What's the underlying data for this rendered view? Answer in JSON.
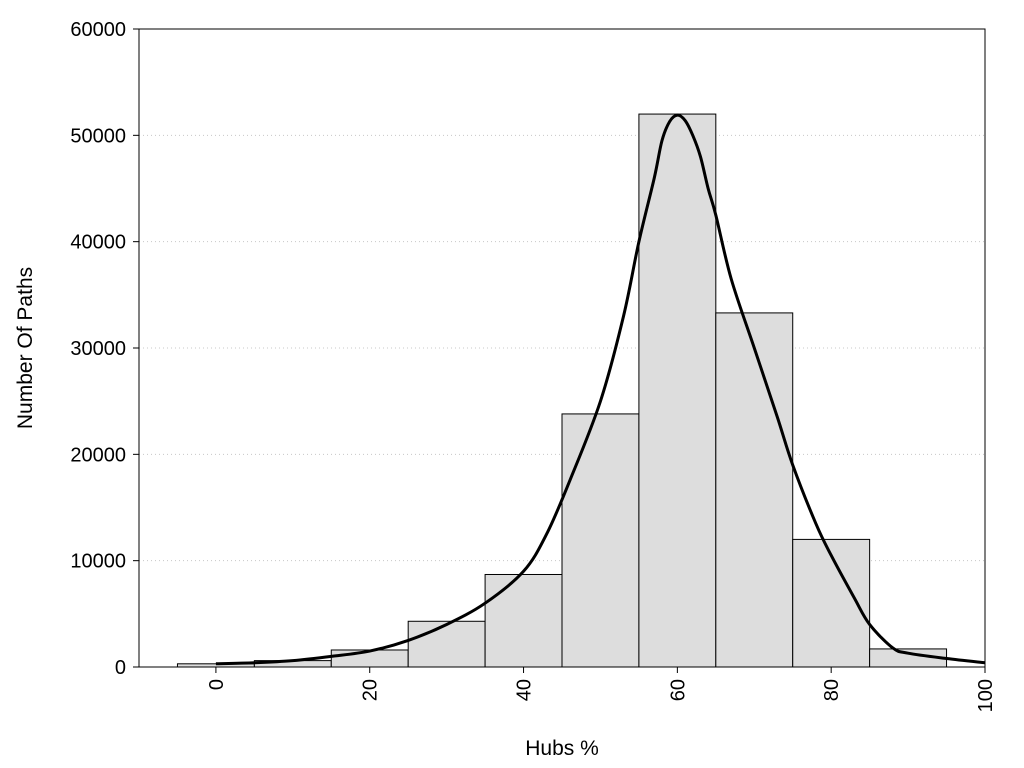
{
  "chart_data": {
    "type": "bar",
    "title": "",
    "xlabel": "Hubs %",
    "ylabel": "Number Of Paths",
    "xlim": [
      -10,
      100
    ],
    "ylim": [
      0,
      60000
    ],
    "x_ticks": [
      0,
      20,
      40,
      60,
      80,
      100
    ],
    "y_ticks": [
      0,
      10000,
      20000,
      30000,
      40000,
      50000,
      60000
    ],
    "grid": "horizontal-dotted",
    "bin_width": 10,
    "bars": {
      "x": [
        0,
        10,
        20,
        30,
        40,
        50,
        60,
        70,
        80,
        90
      ],
      "values": [
        300,
        600,
        1600,
        4300,
        8700,
        23800,
        52000,
        33300,
        12000,
        1700
      ],
      "color": "#dddddd"
    },
    "density_curve": {
      "x": [
        0,
        5,
        10,
        15,
        20,
        25,
        30,
        35,
        40,
        43,
        46,
        50,
        53,
        55,
        57,
        58,
        59,
        60,
        61,
        62,
        63,
        64,
        65,
        67,
        70,
        73,
        75,
        78,
        80,
        83,
        85,
        88,
        90,
        95,
        100
      ],
      "y": [
        300,
        400,
        600,
        1000,
        1500,
        2500,
        4000,
        6000,
        9000,
        12500,
        17500,
        25000,
        33000,
        40000,
        46000,
        49500,
        51300,
        51900,
        51400,
        50000,
        48000,
        45000,
        42500,
        36500,
        30000,
        23500,
        19000,
        13500,
        10500,
        6500,
        4000,
        1800,
        1300,
        800,
        400
      ],
      "color": "#000000"
    }
  }
}
